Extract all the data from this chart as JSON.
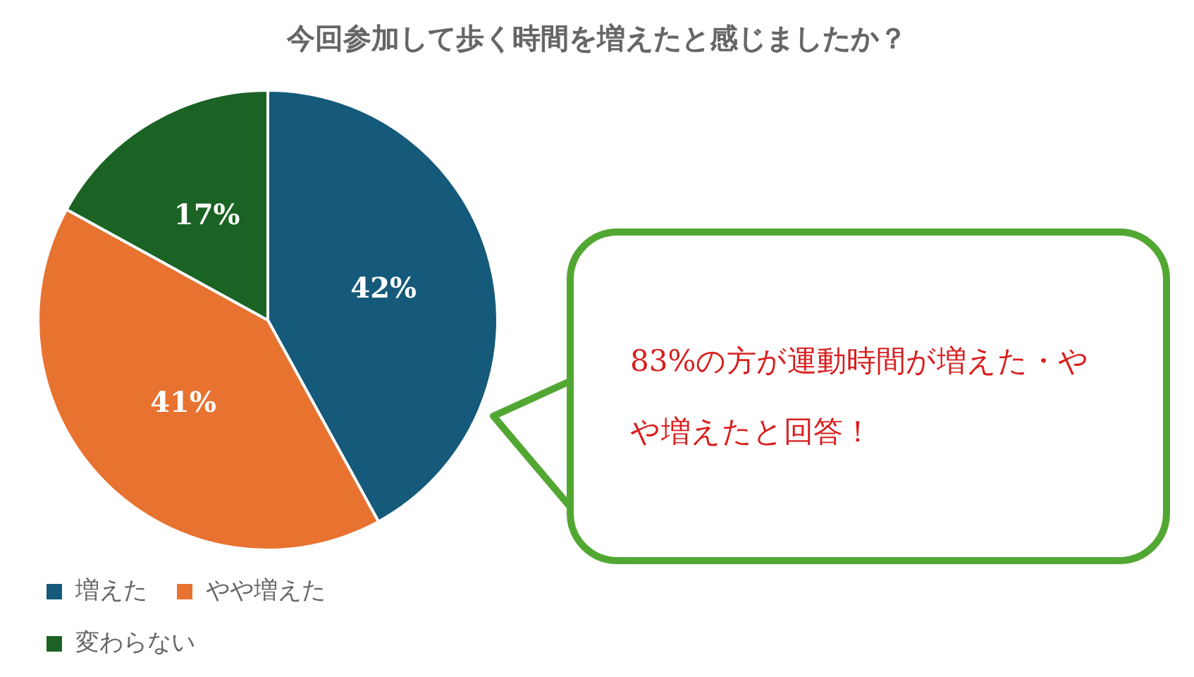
{
  "chart_data": {
    "type": "pie",
    "title": "今回参加して歩く時間を増えたと感じましたか？",
    "categories": [
      "増えた",
      "やや増えた",
      "変わらない"
    ],
    "values": [
      42,
      41,
      17
    ],
    "colors": [
      "#155a7a",
      "#e87230",
      "#1a6324"
    ],
    "value_labels": [
      "42%",
      "41%",
      "17%"
    ],
    "legend": "bottom",
    "annotations": [
      "83%の方が運動時間が増えた・やや増えたと回答！"
    ]
  }
}
